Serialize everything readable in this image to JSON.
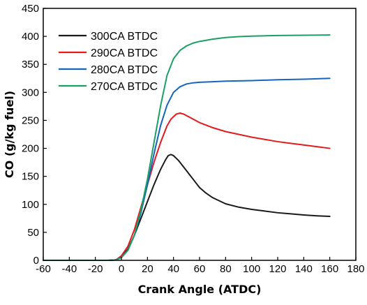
{
  "chart_data": {
    "type": "line",
    "title": "",
    "xlabel": "Crank Angle (ATDC)",
    "ylabel": "CO (g/kg fuel)",
    "xlim": [
      -60,
      180
    ],
    "ylim": [
      0,
      450
    ],
    "xticks": [
      -60,
      -40,
      -20,
      0,
      20,
      40,
      60,
      80,
      100,
      120,
      140,
      160,
      180
    ],
    "yticks": [
      0,
      50,
      100,
      150,
      200,
      250,
      300,
      350,
      400,
      450
    ],
    "grid": false,
    "legend_position": "top-left",
    "series": [
      {
        "name": "300CA BTDC",
        "color": "#1a1a1a",
        "points": [
          [
            -60,
            0
          ],
          [
            -10,
            0
          ],
          [
            -6,
            0.5
          ],
          [
            -4,
            1
          ],
          [
            0,
            6
          ],
          [
            5,
            20
          ],
          [
            10,
            45
          ],
          [
            15,
            75
          ],
          [
            20,
            105
          ],
          [
            25,
            135
          ],
          [
            30,
            162
          ],
          [
            34,
            180
          ],
          [
            36,
            187
          ],
          [
            38,
            189
          ],
          [
            40,
            187
          ],
          [
            44,
            178
          ],
          [
            50,
            160
          ],
          [
            55,
            145
          ],
          [
            60,
            130
          ],
          [
            65,
            120
          ],
          [
            70,
            112
          ],
          [
            80,
            101
          ],
          [
            90,
            95
          ],
          [
            100,
            91
          ],
          [
            110,
            88
          ],
          [
            120,
            85
          ],
          [
            130,
            83
          ],
          [
            140,
            81
          ],
          [
            150,
            79.5
          ],
          [
            160,
            78.5
          ]
        ]
      },
      {
        "name": "290CA BTDC",
        "color": "#e41a1c",
        "points": [
          [
            -60,
            0
          ],
          [
            -10,
            0
          ],
          [
            -6,
            0.5
          ],
          [
            -4,
            1
          ],
          [
            0,
            8
          ],
          [
            5,
            25
          ],
          [
            10,
            55
          ],
          [
            15,
            95
          ],
          [
            20,
            135
          ],
          [
            25,
            175
          ],
          [
            30,
            210
          ],
          [
            35,
            240
          ],
          [
            38,
            252
          ],
          [
            42,
            261
          ],
          [
            45,
            263
          ],
          [
            48,
            261
          ],
          [
            52,
            256
          ],
          [
            60,
            246
          ],
          [
            70,
            237
          ],
          [
            80,
            230
          ],
          [
            90,
            225
          ],
          [
            100,
            220
          ],
          [
            110,
            216
          ],
          [
            120,
            212
          ],
          [
            130,
            209
          ],
          [
            140,
            206
          ],
          [
            150,
            203
          ],
          [
            160,
            200
          ]
        ]
      },
      {
        "name": "280CA BTDC",
        "color": "#1565c0",
        "points": [
          [
            -60,
            0
          ],
          [
            -10,
            0
          ],
          [
            -6,
            0.5
          ],
          [
            -4,
            1
          ],
          [
            0,
            5
          ],
          [
            5,
            18
          ],
          [
            10,
            45
          ],
          [
            15,
            85
          ],
          [
            20,
            135
          ],
          [
            25,
            190
          ],
          [
            30,
            240
          ],
          [
            35,
            277
          ],
          [
            40,
            300
          ],
          [
            45,
            310
          ],
          [
            50,
            315
          ],
          [
            55,
            317
          ],
          [
            60,
            318
          ],
          [
            70,
            319
          ],
          [
            80,
            320
          ],
          [
            100,
            321
          ],
          [
            120,
            322.5
          ],
          [
            140,
            323.5
          ],
          [
            160,
            325
          ]
        ]
      },
      {
        "name": "270CA BTDC",
        "color": "#1aa062",
        "points": [
          [
            -60,
            0
          ],
          [
            -10,
            0
          ],
          [
            -6,
            0.5
          ],
          [
            -4,
            1
          ],
          [
            0,
            5
          ],
          [
            5,
            18
          ],
          [
            10,
            45
          ],
          [
            15,
            90
          ],
          [
            20,
            145
          ],
          [
            25,
            210
          ],
          [
            30,
            275
          ],
          [
            35,
            330
          ],
          [
            40,
            360
          ],
          [
            45,
            375
          ],
          [
            50,
            383
          ],
          [
            55,
            388
          ],
          [
            60,
            391
          ],
          [
            70,
            395
          ],
          [
            80,
            398
          ],
          [
            90,
            399.5
          ],
          [
            100,
            400.5
          ],
          [
            120,
            401.5
          ],
          [
            140,
            402
          ],
          [
            160,
            402.5
          ]
        ]
      }
    ]
  }
}
